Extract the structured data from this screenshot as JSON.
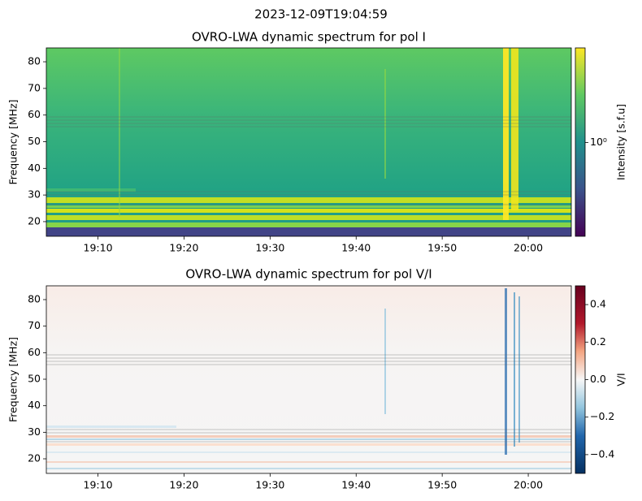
{
  "suptitle": "2023-12-09T19:04:59",
  "chart_data": [
    {
      "type": "heatmap",
      "title": "OVRO-LWA dynamic spectrum for pol I",
      "ylabel": "Frequency [MHz]",
      "xlim": [
        "19:04",
        "20:05"
      ],
      "xticks": [
        "19:10",
        "19:20",
        "19:30",
        "19:40",
        "19:50",
        "20:00"
      ],
      "ylim": [
        14.5,
        85.2
      ],
      "yticks": [
        20,
        30,
        40,
        50,
        60,
        70,
        80
      ],
      "colorbar_label": "Intensity [s.f.u]",
      "clim": [
        0.42,
        2.4
      ],
      "clog": true,
      "cticks": [
        {
          "value": 1,
          "label": "10⁰"
        }
      ]
    },
    {
      "type": "heatmap",
      "title": "OVRO-LWA dynamic spectrum for pol V/I",
      "ylabel": "Frequency [MHz]",
      "xlim": [
        "19:04",
        "20:05"
      ],
      "xticks": [
        "19:10",
        "19:20",
        "19:30",
        "19:40",
        "19:50",
        "20:00"
      ],
      "ylim": [
        14.5,
        85.2
      ],
      "yticks": [
        20,
        30,
        40,
        50,
        60,
        70,
        80
      ],
      "colorbar_label": "V/I",
      "clim": [
        -0.5,
        0.5
      ],
      "clog": false,
      "cticks": [
        {
          "value": -0.4,
          "label": "−0.4"
        },
        {
          "value": -0.2,
          "label": "−0.2"
        },
        {
          "value": 0,
          "label": "0.0"
        },
        0.2,
        0.4
      ]
    }
  ]
}
